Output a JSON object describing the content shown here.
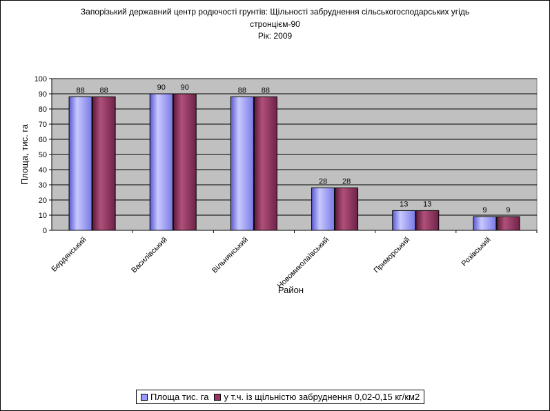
{
  "chart_data": {
    "type": "bar",
    "title_lines": [
      "Запорізький державний центр родючості грунтів: Щільності забруднення сільськогосподарських угідь",
      "стронцієм-90",
      "Рік: 2009"
    ],
    "xlabel": "Район",
    "ylabel": "Площа, тис. га",
    "ylim": [
      0,
      100
    ],
    "yticks": [
      0,
      10,
      20,
      30,
      40,
      50,
      60,
      70,
      80,
      90,
      100
    ],
    "grid": true,
    "legend_position": "bottom",
    "categories": [
      "Бердянський",
      "Василівський",
      "Вільнянський",
      "Новомиколаївський",
      "Приморський",
      "Розівський"
    ],
    "series": [
      {
        "name": "Площа тис. га",
        "values": [
          88,
          90,
          88,
          28,
          13,
          9
        ],
        "color": "#9999ff"
      },
      {
        "name": "у т.ч. із щільністю забруднення  0,02-0,15 кг/км2",
        "values": [
          88,
          90,
          88,
          28,
          13,
          9
        ],
        "color": "#993366"
      }
    ],
    "plot_background": "#c0c0c0"
  }
}
